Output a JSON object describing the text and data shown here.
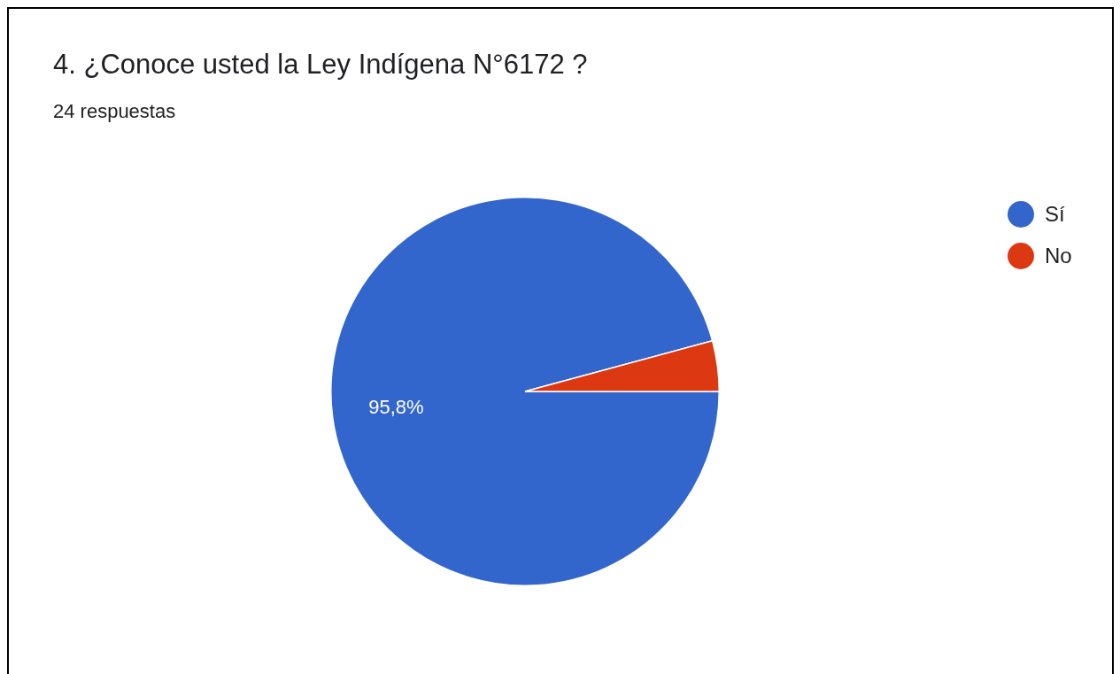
{
  "chart_data": {
    "type": "pie",
    "title": "4. ¿Conoce usted la Ley Indígena N°6172 ?",
    "subtitle": "24 respuestas",
    "categories": [
      "Sí",
      "No"
    ],
    "values": [
      95.8,
      4.2
    ],
    "colors": [
      "#3366cc",
      "#dc3912"
    ],
    "value_labels": [
      "95,8%",
      null
    ],
    "legend": "top right"
  }
}
